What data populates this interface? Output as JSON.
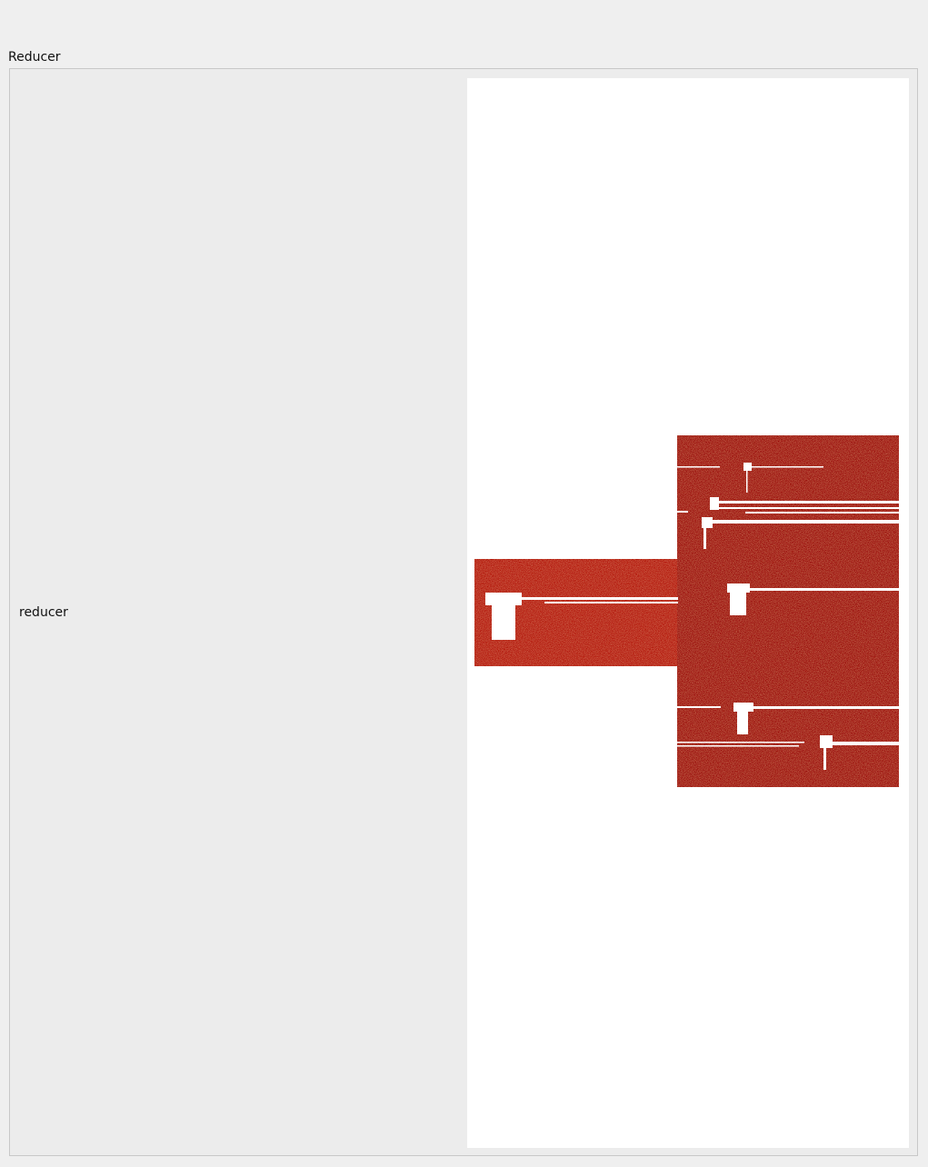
{
  "group": {
    "title": "Reducer"
  },
  "row": {
    "label": "reducer"
  },
  "view": {
    "type": "part-preview",
    "fill_color": "#9e0c08",
    "fill_color_light": "#b81a10",
    "background_color": "#ffffff"
  }
}
